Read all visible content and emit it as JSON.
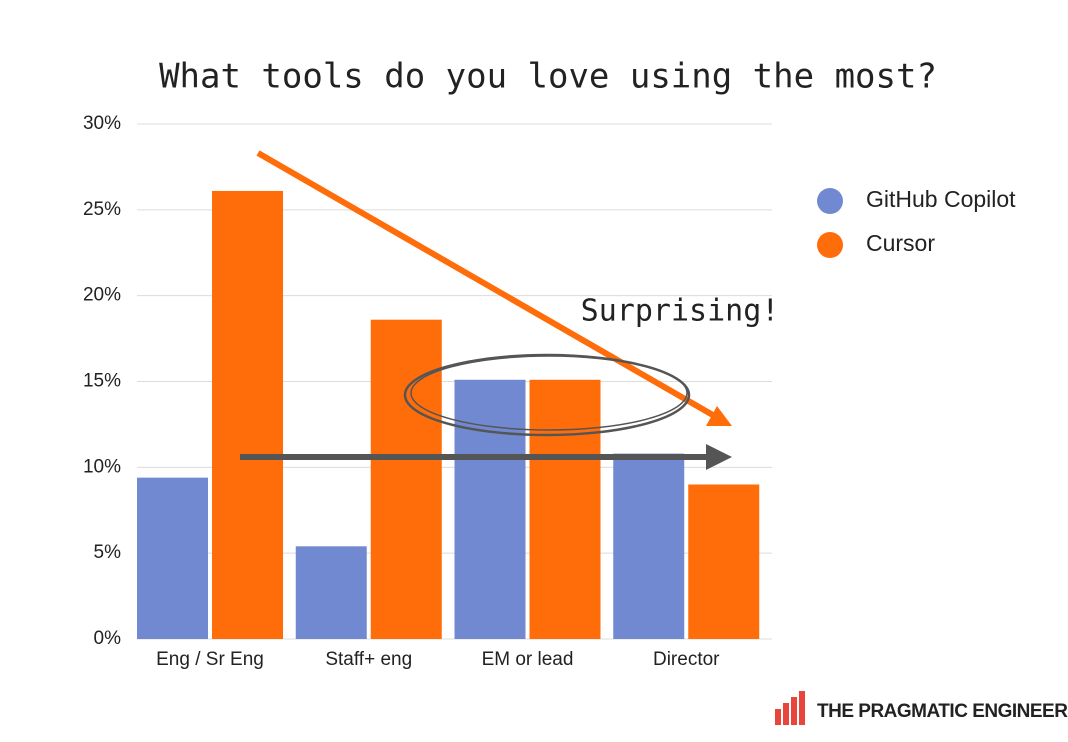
{
  "chart_data": {
    "type": "bar",
    "title": "What tools do you love using the most?",
    "categories": [
      "Eng / Sr Eng",
      "Staff+ eng",
      "EM or lead",
      "Director"
    ],
    "series": [
      {
        "name": "GitHub Copilot",
        "color": "#7189d0",
        "values": [
          9.4,
          5.4,
          15.1,
          10.8
        ]
      },
      {
        "name": "Cursor",
        "color": "#ff6d0a",
        "values": [
          26.1,
          18.6,
          15.1,
          9.0
        ]
      }
    ],
    "ylim": [
      0,
      30
    ],
    "yticks": [
      {
        "value": 0,
        "label": "0%"
      },
      {
        "value": 5,
        "label": "5%"
      },
      {
        "value": 10,
        "label": "10%"
      },
      {
        "value": 15,
        "label": "15%"
      },
      {
        "value": 20,
        "label": "20%"
      },
      {
        "value": 25,
        "label": "25%"
      },
      {
        "value": 30,
        "label": "30%"
      }
    ],
    "grid": true,
    "legend": "right",
    "annotation": "Surprising!"
  },
  "brand": "THE PRAGMATIC ENGINEER"
}
